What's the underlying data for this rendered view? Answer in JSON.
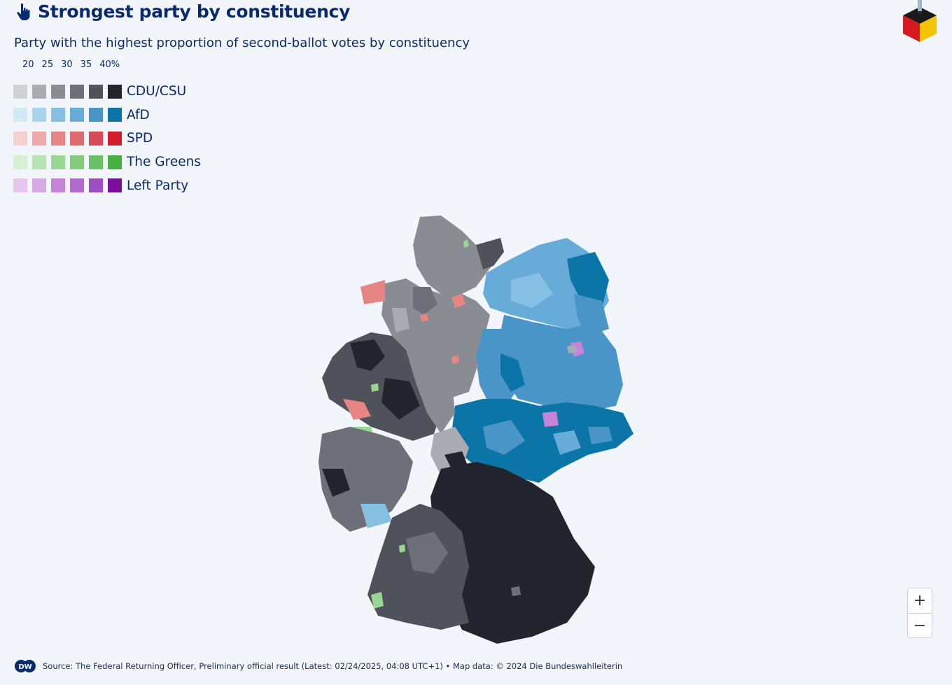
{
  "header": {
    "title": "Strongest party by constituency",
    "subtitle": "Party with the highest proportion of second-ballot votes by constituency"
  },
  "legend": {
    "scale_labels": [
      "20",
      "25",
      "30",
      "35",
      "40%"
    ],
    "parties": [
      {
        "name": "CDU/CSU",
        "shades": [
          "#cfd1d6",
          "#a9acb3",
          "#898c93",
          "#6d7078",
          "#4f525b",
          "#22252e"
        ]
      },
      {
        "name": "AfD",
        "shades": [
          "#cfe9f7",
          "#a8d3ec",
          "#85c0e2",
          "#67abd8",
          "#4a95c8",
          "#0b75a8"
        ]
      },
      {
        "name": "SPD",
        "shades": [
          "#f4d0d0",
          "#eeaaaa",
          "#e78585",
          "#df6a70",
          "#d74a55",
          "#d21b2c"
        ]
      },
      {
        "name": "The Greens",
        "shades": [
          "#d6f0d3",
          "#b6e3b1",
          "#98d692",
          "#82cc7c",
          "#6cc167",
          "#43b03f"
        ]
      },
      {
        "name": "Left Party",
        "shades": [
          "#e6c8ee",
          "#d8a8e4",
          "#c684d8",
          "#b46bcd",
          "#9e4fbf",
          "#7a0f9e"
        ]
      }
    ]
  },
  "map": {
    "zoom_in_label": "+",
    "zoom_out_label": "−"
  },
  "footer": {
    "logo_text": "DW",
    "source": "Source: The Federal Returning Officer, Preliminary official result (Latest: 02/24/2025, 04:08 UTC+1) • Map data: © 2024 Die Bundeswahlleiterin"
  }
}
